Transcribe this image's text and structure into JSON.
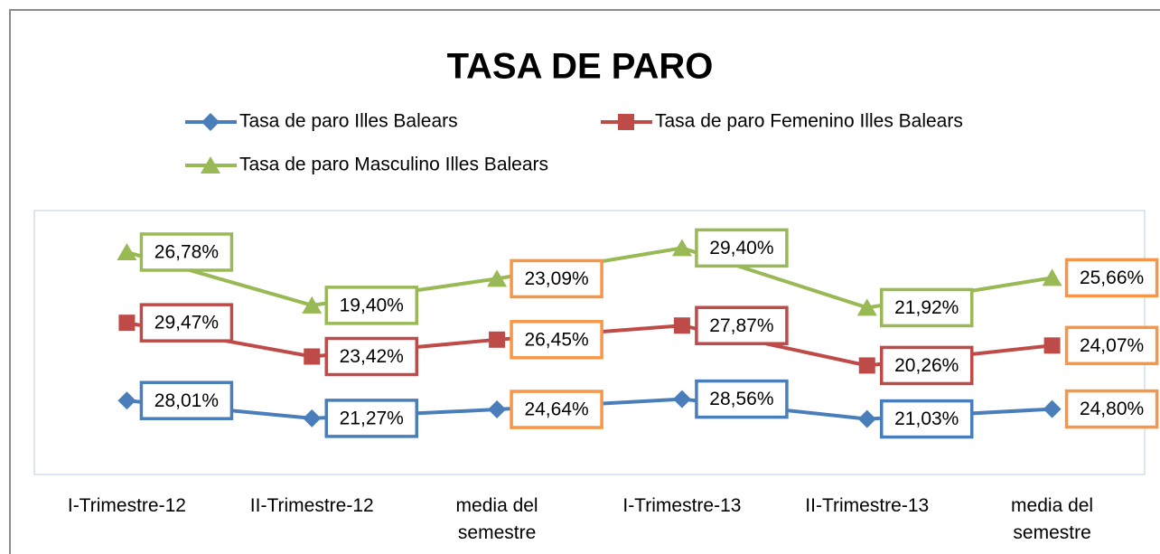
{
  "chart_data": {
    "type": "line",
    "stacked": true,
    "title": "TASA DE PARO",
    "categories": [
      "I-Trimestre-12",
      "II-Trimestre-12",
      "media del semestre",
      "I-Trimestre-13",
      "II-Trimestre-13",
      "media del semestre"
    ],
    "ylim": [
      0,
      100
    ],
    "grid": false,
    "legend": "top",
    "series": [
      {
        "name": "Tasa de paro Illes Balears",
        "color": "#4a7ebb",
        "marker": "diamond",
        "values": [
          28.01,
          21.27,
          24.64,
          28.56,
          21.03,
          24.8
        ],
        "value_labels": [
          "28,01%",
          "21,27%",
          "24,64%",
          "28,56%",
          "21,03%",
          "24,80%"
        ],
        "label_colors": [
          "#4a7ebb",
          "#4a7ebb",
          "#f79646",
          "#4a7ebb",
          "#4a7ebb",
          "#f79646"
        ]
      },
      {
        "name": "Tasa de paro Femenino Illes Balears",
        "color": "#be4b48",
        "marker": "square",
        "values": [
          29.47,
          23.42,
          26.45,
          27.87,
          20.26,
          24.07
        ],
        "value_labels": [
          "29,47%",
          "23,42%",
          "26,45%",
          "27,87%",
          "20,26%",
          "24,07%"
        ],
        "label_colors": [
          "#be4b48",
          "#be4b48",
          "#f79646",
          "#be4b48",
          "#be4b48",
          "#f79646"
        ]
      },
      {
        "name": "Tasa de paro Masculino Illes Balears",
        "color": "#98b954",
        "marker": "triangle",
        "values": [
          26.78,
          19.4,
          23.09,
          29.4,
          21.92,
          25.66
        ],
        "value_labels": [
          "26,78%",
          "19,40%",
          "23,09%",
          "29,40%",
          "21,92%",
          "25,66%"
        ],
        "label_colors": [
          "#98b954",
          "#98b954",
          "#f79646",
          "#98b954",
          "#98b954",
          "#f79646"
        ]
      }
    ]
  }
}
